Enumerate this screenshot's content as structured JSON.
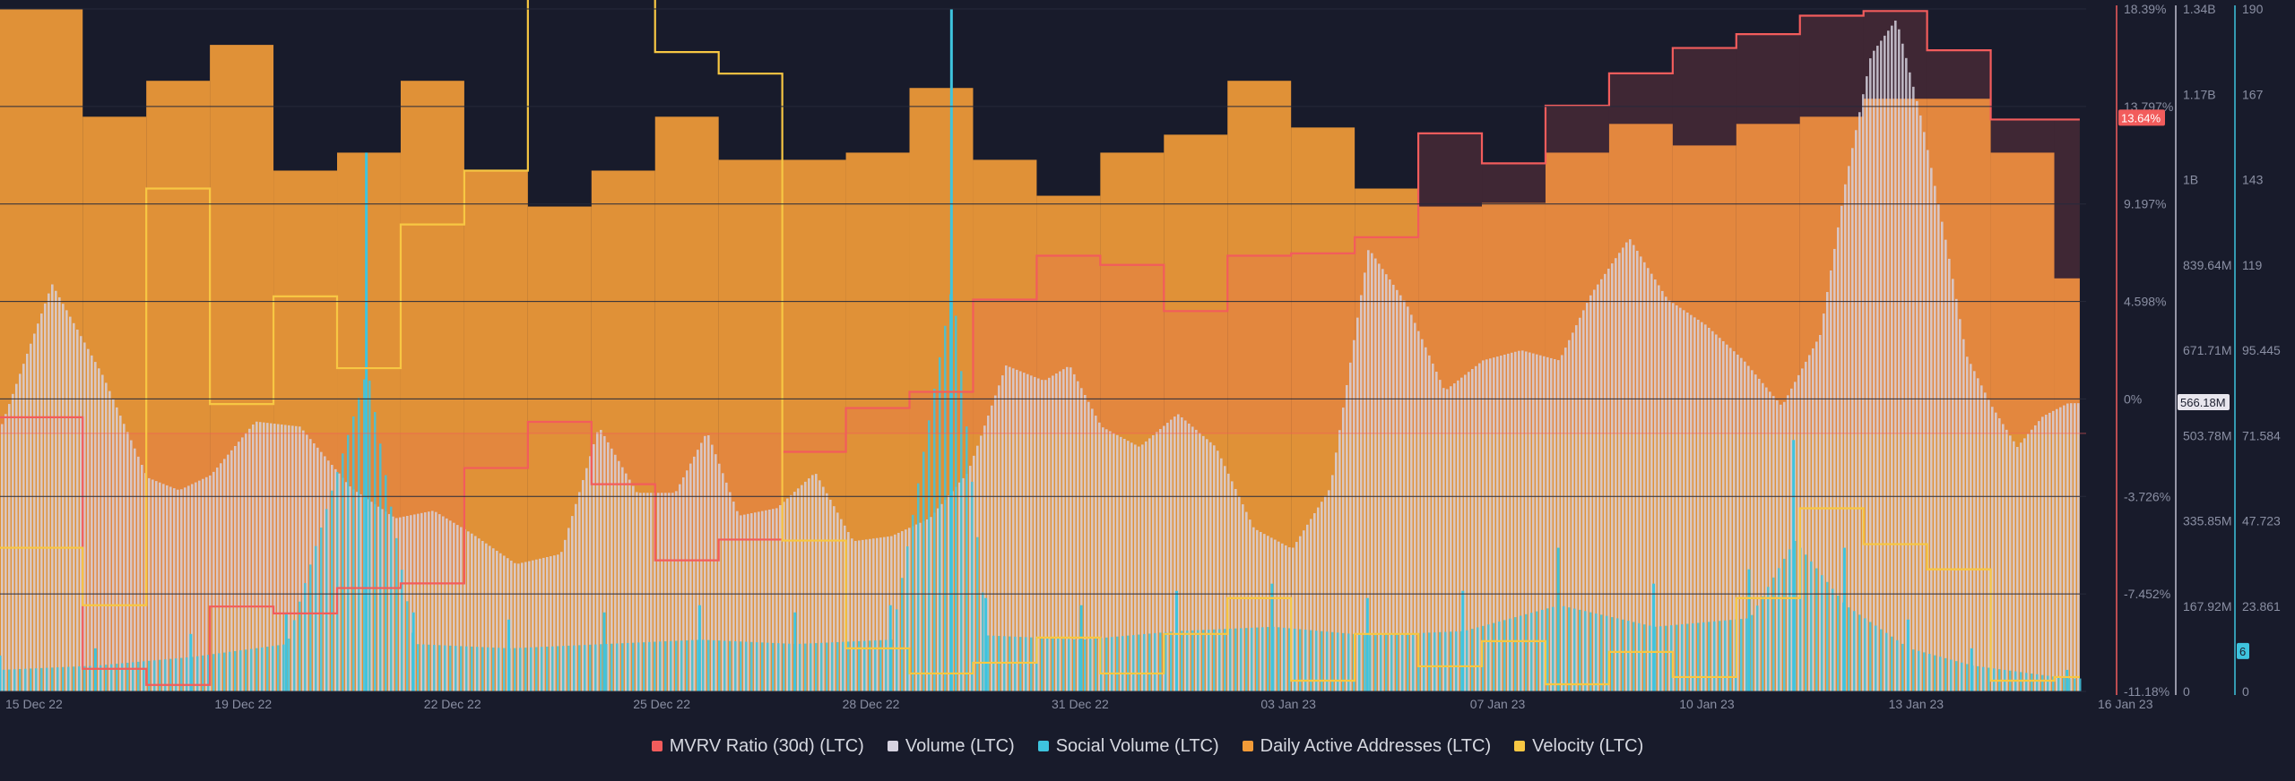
{
  "colors": {
    "background": "#181b2b",
    "mvrv": "#f25c5c",
    "volume": "#d7d3e1",
    "social": "#3ec4de",
    "daa": "#f29b38",
    "velocity": "#f7c743",
    "grid": "#262a3b",
    "tick": "#8a8fa3"
  },
  "legend": [
    {
      "label": "MVRV Ratio (30d) (LTC)",
      "color": "#f25c5c"
    },
    {
      "label": "Volume (LTC)",
      "color": "#d7d3e1"
    },
    {
      "label": "Social Volume (LTC)",
      "color": "#3ec4de"
    },
    {
      "label": "Daily Active Addresses (LTC)",
      "color": "#f29b38"
    },
    {
      "label": "Velocity (LTC)",
      "color": "#f7c743"
    }
  ],
  "chart_data": {
    "type": "multi-series time chart (bars + step lines)",
    "x_tick_labels": [
      "15 Dec 22",
      "19 Dec 22",
      "22 Dec 22",
      "25 Dec 22",
      "28 Dec 22",
      "31 Dec 22",
      "03 Jan 23",
      "07 Jan 23",
      "10 Jan 23",
      "13 Jan 23",
      "16 Jan 23"
    ],
    "x_range_days": [
      0,
      32.8
    ],
    "axes": {
      "mvrv": {
        "ticks": [
          "18.39%",
          "13.797%",
          "9.197%",
          "4.598%",
          "0%",
          "-3.726%",
          "-7.452%",
          "-11.18%"
        ],
        "range": [
          -11.18,
          18.39
        ],
        "current_label": "13.64%"
      },
      "volume": {
        "ticks": [
          "1.34B",
          "1.17B",
          "1B",
          "839.64M",
          "671.71M",
          "503.78M",
          "335.85M",
          "167.92M",
          "0"
        ],
        "range_millions": [
          0,
          1340
        ],
        "current_label": "566.18M"
      },
      "social": {
        "ticks": [
          "190",
          "167",
          "143",
          "119",
          "95.445",
          "71.584",
          "47.723",
          "23.861",
          "0"
        ],
        "range": [
          0,
          190
        ],
        "current_label": "6"
      }
    },
    "series": [
      {
        "name": "Daily Active Addresses (LTC)",
        "step": true,
        "x": [
          0,
          1.3,
          2.3,
          3.3,
          4.3,
          5.3,
          6.3,
          7.3,
          8.3,
          9.3,
          10.3,
          11.3,
          12.3,
          13.3,
          14.3,
          15.3,
          16.3,
          17.3,
          18.3,
          19.3,
          20.3,
          21.3,
          22.3,
          23.3,
          24.3,
          25.3,
          26.3,
          27.3,
          28.3,
          29.3,
          30.3,
          31.3,
          32.3
        ],
        "values": [
          190,
          160,
          170,
          180,
          145,
          150,
          170,
          145,
          135,
          145,
          160,
          148,
          148,
          150,
          168,
          148,
          138,
          150,
          155,
          170,
          157,
          140,
          135,
          136,
          150,
          158,
          152,
          158,
          160,
          165,
          165,
          150,
          115
        ]
      },
      {
        "name": "MVRV Ratio (30d) (LTC)",
        "step": true,
        "x": [
          0,
          1.3,
          2.3,
          3.3,
          4.3,
          5.3,
          6.3,
          7.3,
          8.3,
          9.3,
          10.3,
          11.3,
          12.3,
          13.3,
          14.3,
          15.3,
          16.3,
          17.3,
          18.3,
          19.3,
          20.3,
          21.3,
          22.3,
          23.3,
          24.3,
          25.3,
          26.3,
          27.3,
          28.3,
          29.3,
          30.3,
          31.3,
          32.3
        ],
        "values": [
          0.7,
          -10.2,
          -10.9,
          -7.5,
          -7.8,
          -6.7,
          -6.5,
          -1.5,
          0.5,
          -2.2,
          -5.5,
          -4.6,
          -0.8,
          1.1,
          1.8,
          5.8,
          7.7,
          7.3,
          5.3,
          7.7,
          7.8,
          8.5,
          13.0,
          11.7,
          14.2,
          15.6,
          16.7,
          17.3,
          18.1,
          18.3,
          16.6,
          13.6,
          13.6
        ]
      },
      {
        "name": "Velocity (LTC)",
        "step": true,
        "x": [
          0,
          1.3,
          2.3,
          3.3,
          4.3,
          5.3,
          6.3,
          7.3,
          8.3,
          9.3,
          10.3,
          11.3,
          12.3,
          13.3,
          14.3,
          15.3,
          16.3,
          17.3,
          18.3,
          19.3,
          20.3,
          21.3,
          22.3,
          23.3,
          24.3,
          25.3,
          26.3,
          27.3,
          28.3,
          29.3,
          30.3,
          31.3,
          32.3
        ],
        "values": [
          40,
          24,
          140,
          80,
          110,
          90,
          130,
          145,
          195,
          205,
          178,
          172,
          42,
          12,
          5,
          8,
          15,
          5,
          16,
          26,
          3,
          16,
          7,
          14,
          2,
          11,
          4,
          26,
          51,
          41,
          34,
          3,
          4
        ]
      },
      {
        "name": "Volume (LTC)",
        "x": [
          0,
          0.8,
          1.6,
          2.3,
          2.8,
          3.3,
          4.0,
          4.7,
          5.5,
          6.2,
          6.8,
          7.4,
          8.1,
          8.8,
          9.4,
          10.0,
          10.6,
          11.1,
          11.6,
          12.2,
          12.8,
          13.4,
          14.0,
          14.6,
          15.2,
          15.8,
          16.4,
          16.8,
          17.3,
          17.9,
          18.5,
          19.1,
          19.7,
          20.3,
          20.9,
          21.5,
          22.1,
          22.7,
          23.3,
          23.9,
          24.5,
          25.0,
          25.6,
          26.2,
          26.8,
          27.4,
          28.0,
          28.6,
          29.0,
          29.4,
          29.8,
          30.2,
          30.6,
          30.9,
          31.3,
          31.7,
          32.1,
          32.5
        ],
        "values": [
          520,
          800,
          620,
          420,
          395,
          425,
          530,
          520,
          400,
          340,
          355,
          310,
          250,
          270,
          520,
          390,
          390,
          510,
          345,
          360,
          430,
          295,
          305,
          340,
          430,
          640,
          610,
          640,
          520,
          480,
          545,
          480,
          320,
          280,
          400,
          870,
          760,
          590,
          650,
          670,
          650,
          780,
          890,
          770,
          720,
          650,
          560,
          700,
          1000,
          1250,
          1320,
          1120,
          870,
          660,
          560,
          480,
          540,
          566
        ]
      },
      {
        "name": "Social Volume (LTC)",
        "x": [
          0,
          1.5,
          3.0,
          4.5,
          5.76,
          6.5,
          8.0,
          9.5,
          11.0,
          12.5,
          14.0,
          14.96,
          15.5,
          17.0,
          18.5,
          20.0,
          21.5,
          23.0,
          24.5,
          26.0,
          27.5,
          28.2,
          29.0,
          30.0,
          31.0,
          32.5
        ],
        "values": [
          10,
          12,
          16,
          22,
          150,
          22,
          20,
          22,
          24,
          22,
          24,
          190,
          26,
          24,
          28,
          30,
          26,
          28,
          40,
          30,
          34,
          70,
          40,
          20,
          12,
          6
        ]
      }
    ]
  }
}
